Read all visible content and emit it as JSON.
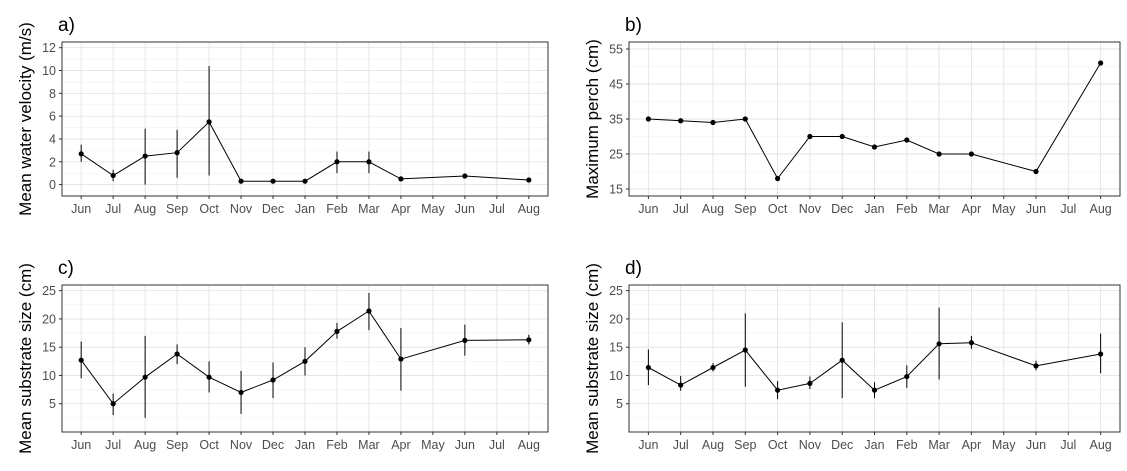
{
  "chart_data": [
    {
      "panel": "a)",
      "type": "line",
      "ylabel": "Mean water velocity (m/s)",
      "categories": [
        "Jun",
        "Jul",
        "Aug",
        "Sep",
        "Oct",
        "Nov",
        "Dec",
        "Jan",
        "Feb",
        "Mar",
        "Apr",
        "May",
        "Jun",
        "Jul",
        "Aug"
      ],
      "ylim": [
        -1,
        12.5
      ],
      "yticks": [
        0,
        2,
        4,
        6,
        8,
        10,
        12
      ],
      "grid": true,
      "error_bars": true,
      "points": [
        {
          "x": "Jun",
          "y": 2.7,
          "low": 2.0,
          "high": 3.5
        },
        {
          "x": "Jul",
          "y": 0.8,
          "low": 0.3,
          "high": 1.3
        },
        {
          "x": "Aug",
          "y": 2.5,
          "low": 0.0,
          "high": 4.9
        },
        {
          "x": "Sep",
          "y": 2.8,
          "low": 0.6,
          "high": 4.8
        },
        {
          "x": "Oct",
          "y": 5.5,
          "low": 0.8,
          "high": 10.4
        },
        {
          "x": "Nov",
          "y": 0.3,
          "low": 0.3,
          "high": 0.3
        },
        {
          "x": "Dec",
          "y": 0.3,
          "low": 0.3,
          "high": 0.3
        },
        {
          "x": "Jan",
          "y": 0.3,
          "low": 0.3,
          "high": 0.3
        },
        {
          "x": "Feb",
          "y": 2.0,
          "low": 1.0,
          "high": 2.9
        },
        {
          "x": "Mar",
          "y": 2.0,
          "low": 1.0,
          "high": 2.9
        },
        {
          "x": "Apr",
          "y": 0.5,
          "low": 0.5,
          "high": 0.5
        },
        {
          "x": "Jun",
          "y": 0.75,
          "low": 0.75,
          "high": 0.75
        },
        {
          "x": "Aug",
          "y": 0.4,
          "low": 0.4,
          "high": 0.4
        }
      ]
    },
    {
      "panel": "b)",
      "type": "line",
      "ylabel": "Maximum perch (cm)",
      "categories": [
        "Jun",
        "Jul",
        "Aug",
        "Sep",
        "Oct",
        "Nov",
        "Dec",
        "Jan",
        "Feb",
        "Mar",
        "Apr",
        "May",
        "Jun",
        "Jul",
        "Aug"
      ],
      "ylim": [
        13,
        57
      ],
      "yticks": [
        15,
        25,
        35,
        45,
        55
      ],
      "grid": true,
      "error_bars": false,
      "points": [
        {
          "x": "Jun",
          "y": 35
        },
        {
          "x": "Jul",
          "y": 34.5
        },
        {
          "x": "Aug",
          "y": 34
        },
        {
          "x": "Sep",
          "y": 35
        },
        {
          "x": "Oct",
          "y": 18
        },
        {
          "x": "Nov",
          "y": 30
        },
        {
          "x": "Dec",
          "y": 30
        },
        {
          "x": "Jan",
          "y": 27
        },
        {
          "x": "Feb",
          "y": 29
        },
        {
          "x": "Mar",
          "y": 25
        },
        {
          "x": "Apr",
          "y": 25
        },
        {
          "x": "Jun",
          "y": 20
        },
        {
          "x": "Aug",
          "y": 51
        }
      ]
    },
    {
      "panel": "c)",
      "type": "line",
      "ylabel": "Mean substrate size (cm)",
      "categories": [
        "Jun",
        "Jul",
        "Aug",
        "Sep",
        "Oct",
        "Nov",
        "Dec",
        "Jan",
        "Feb",
        "Mar",
        "Apr",
        "May",
        "Jun",
        "Jul",
        "Aug"
      ],
      "ylim": [
        0,
        26
      ],
      "yticks": [
        5,
        10,
        15,
        20,
        25
      ],
      "grid": true,
      "error_bars": true,
      "points": [
        {
          "x": "Jun",
          "y": 12.7,
          "low": 9.5,
          "high": 16.0
        },
        {
          "x": "Jul",
          "y": 5.0,
          "low": 3.0,
          "high": 6.8
        },
        {
          "x": "Aug",
          "y": 9.7,
          "low": 2.5,
          "high": 17.0
        },
        {
          "x": "Sep",
          "y": 13.8,
          "low": 12.0,
          "high": 15.5
        },
        {
          "x": "Oct",
          "y": 9.7,
          "low": 7.0,
          "high": 12.5
        },
        {
          "x": "Nov",
          "y": 7.0,
          "low": 3.2,
          "high": 10.8
        },
        {
          "x": "Dec",
          "y": 9.2,
          "low": 6.0,
          "high": 12.3
        },
        {
          "x": "Jan",
          "y": 12.5,
          "low": 10.0,
          "high": 15.0
        },
        {
          "x": "Feb",
          "y": 17.8,
          "low": 16.5,
          "high": 19.3
        },
        {
          "x": "Mar",
          "y": 21.4,
          "low": 18.0,
          "high": 24.6
        },
        {
          "x": "Apr",
          "y": 12.9,
          "low": 7.3,
          "high": 18.4
        },
        {
          "x": "Jun",
          "y": 16.2,
          "low": 13.5,
          "high": 19.0
        },
        {
          "x": "Aug",
          "y": 16.3,
          "low": 15.5,
          "high": 17.2
        }
      ]
    },
    {
      "panel": "d)",
      "type": "line",
      "ylabel": "Mean substrate size (cm)",
      "categories": [
        "Jun",
        "Jul",
        "Aug",
        "Sep",
        "Oct",
        "Nov",
        "Dec",
        "Jan",
        "Feb",
        "Mar",
        "Apr",
        "May",
        "Jun",
        "Jul",
        "Aug"
      ],
      "ylim": [
        0,
        26
      ],
      "yticks": [
        5,
        10,
        15,
        20,
        25
      ],
      "grid": true,
      "error_bars": true,
      "points": [
        {
          "x": "Jun",
          "y": 11.4,
          "low": 8.3,
          "high": 14.6
        },
        {
          "x": "Jul",
          "y": 8.3,
          "low": 7.3,
          "high": 9.9
        },
        {
          "x": "Aug",
          "y": 11.4,
          "low": 10.7,
          "high": 12.2
        },
        {
          "x": "Sep",
          "y": 14.5,
          "low": 8.0,
          "high": 21.0
        },
        {
          "x": "Oct",
          "y": 7.4,
          "low": 5.8,
          "high": 9.0
        },
        {
          "x": "Nov",
          "y": 8.6,
          "low": 7.6,
          "high": 9.8
        },
        {
          "x": "Dec",
          "y": 12.7,
          "low": 6.0,
          "high": 19.4
        },
        {
          "x": "Jan",
          "y": 7.4,
          "low": 6.0,
          "high": 8.8
        },
        {
          "x": "Feb",
          "y": 9.8,
          "low": 7.8,
          "high": 11.8
        },
        {
          "x": "Mar",
          "y": 15.6,
          "low": 9.3,
          "high": 22.0
        },
        {
          "x": "Apr",
          "y": 15.8,
          "low": 14.7,
          "high": 17.0
        },
        {
          "x": "Jun",
          "y": 11.7,
          "low": 10.9,
          "high": 12.6
        },
        {
          "x": "Aug",
          "y": 13.8,
          "low": 10.4,
          "high": 17.4
        }
      ]
    }
  ]
}
